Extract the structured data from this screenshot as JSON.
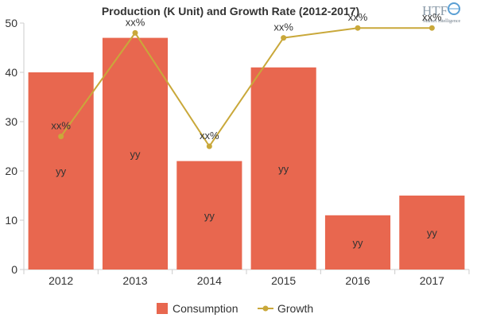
{
  "chart_data": {
    "type": "bar",
    "title": "Production (K Unit) and Growth Rate (2012-2017)",
    "categories": [
      "2012",
      "2013",
      "2014",
      "2015",
      "2016",
      "2017"
    ],
    "ylim": [
      0,
      50
    ],
    "yticks": [
      0,
      10,
      20,
      30,
      40,
      50
    ],
    "grid": false,
    "legend_position": "bottom",
    "series": [
      {
        "name": "Consumption",
        "type": "bar",
        "color": "#e8674f",
        "values": [
          40,
          47,
          22,
          41,
          11,
          15
        ],
        "labels": [
          "yy",
          "yy",
          "yy",
          "yy",
          "yy",
          "yy"
        ]
      },
      {
        "name": "Growth",
        "type": "line",
        "color": "#c9a83a",
        "values": [
          27,
          48,
          25,
          47,
          49,
          49
        ],
        "labels": [
          "xx%",
          "xx%",
          "xx%",
          "xx%",
          "xx%",
          "xx%"
        ]
      }
    ]
  },
  "logo": {
    "brand": "HTF",
    "tagline": "Market Intelligence"
  }
}
